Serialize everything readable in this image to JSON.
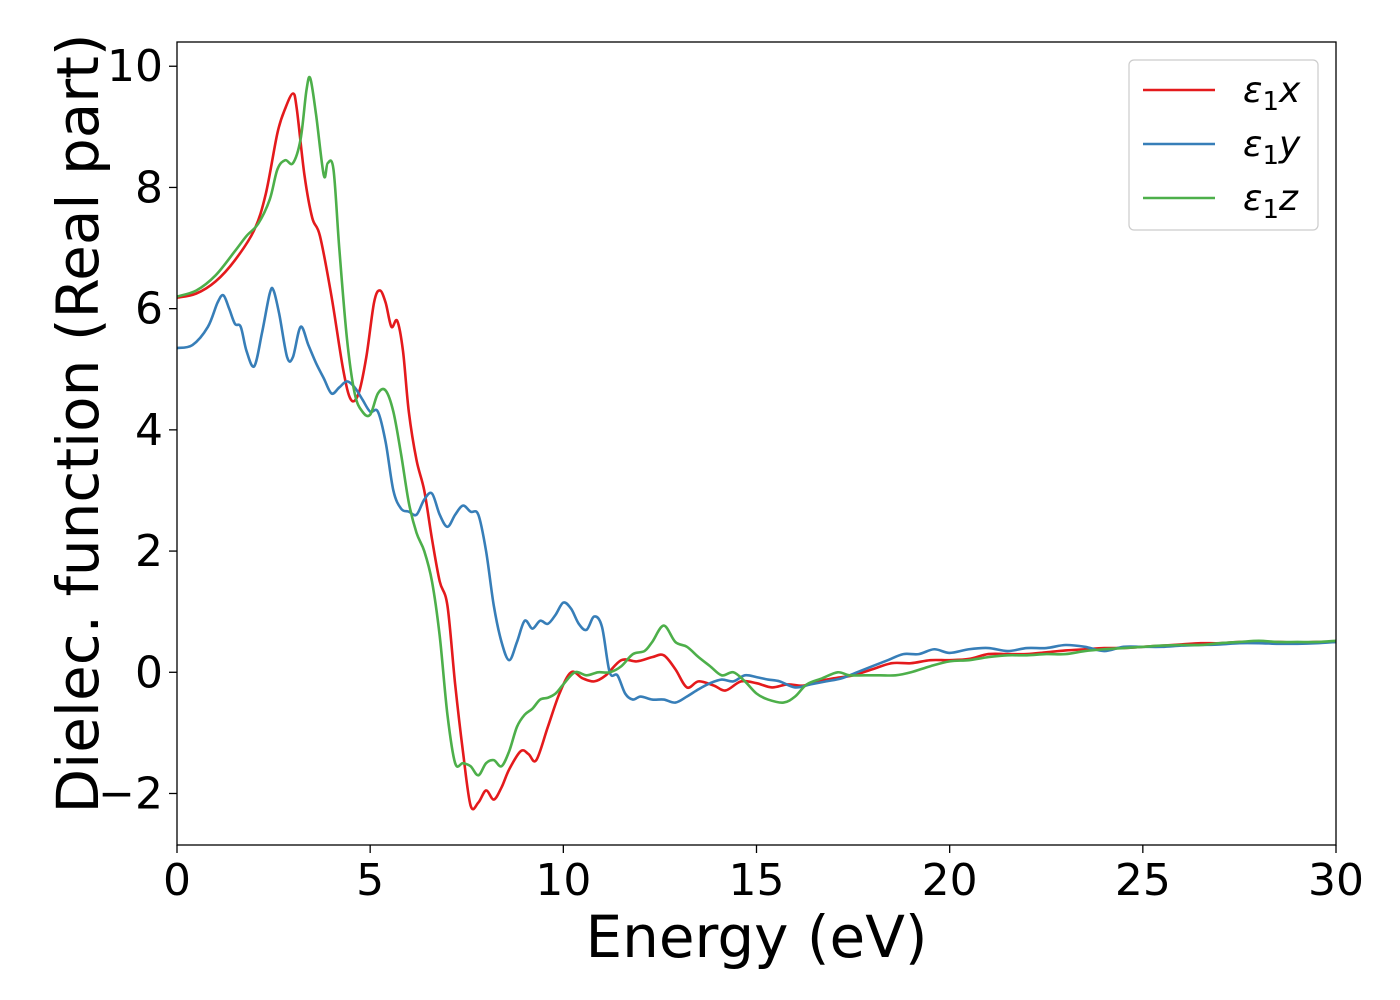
{
  "chart_data": {
    "type": "line",
    "xlabel": "Energy (eV)",
    "ylabel": "Dielec. function (Real part)",
    "xlim": [
      0,
      30
    ],
    "ylim": [
      -2.85,
      10.4
    ],
    "xticks": [
      0,
      5,
      10,
      15,
      20,
      25,
      30
    ],
    "xtick_labels": [
      "0",
      "5",
      "10",
      "15",
      "20",
      "25",
      "30"
    ],
    "yticks": [
      -2,
      0,
      2,
      4,
      6,
      8,
      10
    ],
    "ytick_labels": [
      "−2",
      "0",
      "2",
      "4",
      "6",
      "8",
      "10"
    ],
    "grid": false,
    "legend_position": "top-right",
    "series": [
      {
        "name": "ε₁x",
        "legend_main": "ε",
        "legend_sub": "1",
        "legend_tail": "x",
        "color": "#e41a1c",
        "points": [
          [
            0,
            6.18
          ],
          [
            0.5,
            6.25
          ],
          [
            1,
            6.45
          ],
          [
            1.5,
            6.8
          ],
          [
            2,
            7.3
          ],
          [
            2.3,
            7.9
          ],
          [
            2.6,
            8.9
          ],
          [
            2.8,
            9.3
          ],
          [
            3.0,
            9.55
          ],
          [
            3.1,
            9.3
          ],
          [
            3.3,
            8.2
          ],
          [
            3.5,
            7.5
          ],
          [
            3.7,
            7.2
          ],
          [
            4.0,
            6.2
          ],
          [
            4.3,
            5.0
          ],
          [
            4.5,
            4.5
          ],
          [
            4.7,
            4.6
          ],
          [
            4.9,
            5.2
          ],
          [
            5.1,
            6.1
          ],
          [
            5.25,
            6.3
          ],
          [
            5.4,
            6.1
          ],
          [
            5.55,
            5.7
          ],
          [
            5.7,
            5.8
          ],
          [
            5.85,
            5.3
          ],
          [
            6.0,
            4.3
          ],
          [
            6.2,
            3.5
          ],
          [
            6.4,
            3.0
          ],
          [
            6.6,
            2.2
          ],
          [
            6.8,
            1.5
          ],
          [
            7.0,
            1.1
          ],
          [
            7.2,
            -0.2
          ],
          [
            7.4,
            -1.3
          ],
          [
            7.6,
            -2.2
          ],
          [
            7.8,
            -2.15
          ],
          [
            8.0,
            -1.95
          ],
          [
            8.2,
            -2.1
          ],
          [
            8.4,
            -1.9
          ],
          [
            8.6,
            -1.6
          ],
          [
            8.9,
            -1.3
          ],
          [
            9.1,
            -1.35
          ],
          [
            9.3,
            -1.45
          ],
          [
            9.6,
            -0.9
          ],
          [
            9.9,
            -0.35
          ],
          [
            10.2,
            0.0
          ],
          [
            10.5,
            -0.1
          ],
          [
            10.8,
            -0.15
          ],
          [
            11.1,
            -0.05
          ],
          [
            11.5,
            0.2
          ],
          [
            11.9,
            0.18
          ],
          [
            12.3,
            0.25
          ],
          [
            12.6,
            0.28
          ],
          [
            12.9,
            0.05
          ],
          [
            13.2,
            -0.25
          ],
          [
            13.5,
            -0.15
          ],
          [
            13.9,
            -0.22
          ],
          [
            14.2,
            -0.3
          ],
          [
            14.6,
            -0.15
          ],
          [
            15.0,
            -0.18
          ],
          [
            15.4,
            -0.25
          ],
          [
            15.8,
            -0.2
          ],
          [
            16.2,
            -0.22
          ],
          [
            16.6,
            -0.15
          ],
          [
            17.0,
            -0.1
          ],
          [
            17.5,
            -0.05
          ],
          [
            18.0,
            0.05
          ],
          [
            18.5,
            0.15
          ],
          [
            19.0,
            0.15
          ],
          [
            19.5,
            0.2
          ],
          [
            20.0,
            0.2
          ],
          [
            20.5,
            0.22
          ],
          [
            21.0,
            0.3
          ],
          [
            21.5,
            0.3
          ],
          [
            22.0,
            0.3
          ],
          [
            22.5,
            0.33
          ],
          [
            23.0,
            0.36
          ],
          [
            23.5,
            0.38
          ],
          [
            24.0,
            0.4
          ],
          [
            24.5,
            0.4
          ],
          [
            25.0,
            0.42
          ],
          [
            25.5,
            0.44
          ],
          [
            26.0,
            0.46
          ],
          [
            26.5,
            0.48
          ],
          [
            27.0,
            0.48
          ],
          [
            27.5,
            0.5
          ],
          [
            28.0,
            0.5
          ],
          [
            28.5,
            0.5
          ],
          [
            29.0,
            0.49
          ],
          [
            29.5,
            0.5
          ],
          [
            30.0,
            0.5
          ]
        ]
      },
      {
        "name": "ε₁y",
        "legend_main": "ε",
        "legend_sub": "1",
        "legend_tail": "y",
        "color": "#377eb8",
        "points": [
          [
            0,
            5.35
          ],
          [
            0.4,
            5.4
          ],
          [
            0.8,
            5.7
          ],
          [
            1.05,
            6.1
          ],
          [
            1.2,
            6.22
          ],
          [
            1.35,
            6.0
          ],
          [
            1.5,
            5.75
          ],
          [
            1.65,
            5.7
          ],
          [
            1.8,
            5.3
          ],
          [
            2.0,
            5.05
          ],
          [
            2.2,
            5.6
          ],
          [
            2.4,
            6.25
          ],
          [
            2.5,
            6.3
          ],
          [
            2.65,
            5.9
          ],
          [
            2.85,
            5.2
          ],
          [
            3.0,
            5.2
          ],
          [
            3.2,
            5.7
          ],
          [
            3.4,
            5.4
          ],
          [
            3.6,
            5.1
          ],
          [
            3.8,
            4.85
          ],
          [
            4.0,
            4.6
          ],
          [
            4.2,
            4.7
          ],
          [
            4.4,
            4.8
          ],
          [
            4.6,
            4.7
          ],
          [
            4.8,
            4.5
          ],
          [
            5.0,
            4.3
          ],
          [
            5.2,
            4.3
          ],
          [
            5.4,
            3.8
          ],
          [
            5.6,
            3.0
          ],
          [
            5.8,
            2.7
          ],
          [
            6.0,
            2.65
          ],
          [
            6.2,
            2.6
          ],
          [
            6.4,
            2.85
          ],
          [
            6.6,
            2.95
          ],
          [
            6.8,
            2.6
          ],
          [
            7.0,
            2.4
          ],
          [
            7.2,
            2.6
          ],
          [
            7.4,
            2.75
          ],
          [
            7.6,
            2.65
          ],
          [
            7.8,
            2.6
          ],
          [
            8.0,
            2.0
          ],
          [
            8.2,
            1.1
          ],
          [
            8.4,
            0.5
          ],
          [
            8.6,
            0.2
          ],
          [
            8.8,
            0.5
          ],
          [
            9.0,
            0.85
          ],
          [
            9.2,
            0.72
          ],
          [
            9.4,
            0.85
          ],
          [
            9.6,
            0.8
          ],
          [
            9.8,
            0.95
          ],
          [
            10.0,
            1.15
          ],
          [
            10.2,
            1.05
          ],
          [
            10.4,
            0.8
          ],
          [
            10.6,
            0.7
          ],
          [
            10.8,
            0.92
          ],
          [
            11.0,
            0.75
          ],
          [
            11.2,
            0.0
          ],
          [
            11.4,
            -0.05
          ],
          [
            11.6,
            -0.35
          ],
          [
            11.8,
            -0.45
          ],
          [
            12.0,
            -0.4
          ],
          [
            12.3,
            -0.45
          ],
          [
            12.6,
            -0.45
          ],
          [
            12.9,
            -0.5
          ],
          [
            13.2,
            -0.4
          ],
          [
            13.5,
            -0.28
          ],
          [
            13.8,
            -0.18
          ],
          [
            14.1,
            -0.12
          ],
          [
            14.4,
            -0.15
          ],
          [
            14.7,
            -0.05
          ],
          [
            15.0,
            -0.08
          ],
          [
            15.3,
            -0.12
          ],
          [
            15.6,
            -0.15
          ],
          [
            16.0,
            -0.25
          ],
          [
            16.4,
            -0.2
          ],
          [
            16.8,
            -0.15
          ],
          [
            17.2,
            -0.1
          ],
          [
            17.6,
            0.0
          ],
          [
            18.0,
            0.1
          ],
          [
            18.4,
            0.2
          ],
          [
            18.8,
            0.3
          ],
          [
            19.2,
            0.3
          ],
          [
            19.6,
            0.38
          ],
          [
            20.0,
            0.32
          ],
          [
            20.5,
            0.38
          ],
          [
            21.0,
            0.4
          ],
          [
            21.5,
            0.35
          ],
          [
            22.0,
            0.4
          ],
          [
            22.5,
            0.4
          ],
          [
            23.0,
            0.45
          ],
          [
            23.5,
            0.42
          ],
          [
            24.0,
            0.35
          ],
          [
            24.5,
            0.42
          ],
          [
            25.0,
            0.42
          ],
          [
            25.5,
            0.42
          ],
          [
            26.0,
            0.44
          ],
          [
            26.5,
            0.45
          ],
          [
            27.0,
            0.46
          ],
          [
            27.5,
            0.48
          ],
          [
            28.0,
            0.48
          ],
          [
            28.5,
            0.47
          ],
          [
            29.0,
            0.47
          ],
          [
            29.5,
            0.48
          ],
          [
            30.0,
            0.5
          ]
        ]
      },
      {
        "name": "ε₁z",
        "legend_main": "ε",
        "legend_sub": "1",
        "legend_tail": "z",
        "color": "#4daf4a",
        "points": [
          [
            0,
            6.2
          ],
          [
            0.5,
            6.3
          ],
          [
            1,
            6.55
          ],
          [
            1.5,
            6.95
          ],
          [
            1.8,
            7.2
          ],
          [
            2.1,
            7.4
          ],
          [
            2.4,
            7.8
          ],
          [
            2.6,
            8.3
          ],
          [
            2.8,
            8.45
          ],
          [
            3.0,
            8.4
          ],
          [
            3.2,
            8.8
          ],
          [
            3.35,
            9.6
          ],
          [
            3.45,
            9.8
          ],
          [
            3.6,
            9.2
          ],
          [
            3.8,
            8.2
          ],
          [
            3.9,
            8.4
          ],
          [
            4.05,
            8.3
          ],
          [
            4.2,
            7.0
          ],
          [
            4.4,
            5.5
          ],
          [
            4.6,
            4.6
          ],
          [
            4.8,
            4.3
          ],
          [
            5.0,
            4.25
          ],
          [
            5.2,
            4.6
          ],
          [
            5.4,
            4.65
          ],
          [
            5.6,
            4.3
          ],
          [
            5.8,
            3.6
          ],
          [
            6.0,
            2.8
          ],
          [
            6.2,
            2.3
          ],
          [
            6.4,
            2.0
          ],
          [
            6.6,
            1.5
          ],
          [
            6.8,
            0.6
          ],
          [
            7.0,
            -0.7
          ],
          [
            7.2,
            -1.5
          ],
          [
            7.4,
            -1.5
          ],
          [
            7.6,
            -1.55
          ],
          [
            7.8,
            -1.7
          ],
          [
            8.0,
            -1.5
          ],
          [
            8.2,
            -1.45
          ],
          [
            8.4,
            -1.55
          ],
          [
            8.6,
            -1.3
          ],
          [
            8.8,
            -0.9
          ],
          [
            9.0,
            -0.7
          ],
          [
            9.2,
            -0.6
          ],
          [
            9.4,
            -0.45
          ],
          [
            9.6,
            -0.42
          ],
          [
            9.8,
            -0.35
          ],
          [
            10.0,
            -0.2
          ],
          [
            10.3,
            0.0
          ],
          [
            10.6,
            -0.05
          ],
          [
            10.9,
            0.0
          ],
          [
            11.2,
            0.0
          ],
          [
            11.5,
            0.1
          ],
          [
            11.8,
            0.3
          ],
          [
            12.1,
            0.35
          ],
          [
            12.3,
            0.5
          ],
          [
            12.6,
            0.77
          ],
          [
            12.9,
            0.5
          ],
          [
            13.2,
            0.42
          ],
          [
            13.5,
            0.25
          ],
          [
            13.8,
            0.1
          ],
          [
            14.1,
            -0.05
          ],
          [
            14.4,
            0.0
          ],
          [
            14.7,
            -0.15
          ],
          [
            15.0,
            -0.35
          ],
          [
            15.3,
            -0.45
          ],
          [
            15.7,
            -0.5
          ],
          [
            16.0,
            -0.4
          ],
          [
            16.3,
            -0.2
          ],
          [
            16.7,
            -0.1
          ],
          [
            17.1,
            0.0
          ],
          [
            17.4,
            -0.05
          ],
          [
            17.8,
            -0.05
          ],
          [
            18.2,
            -0.05
          ],
          [
            18.6,
            -0.05
          ],
          [
            19.0,
            0.0
          ],
          [
            19.5,
            0.1
          ],
          [
            20.0,
            0.18
          ],
          [
            20.5,
            0.2
          ],
          [
            21.0,
            0.25
          ],
          [
            21.5,
            0.28
          ],
          [
            22.0,
            0.28
          ],
          [
            22.5,
            0.3
          ],
          [
            23.0,
            0.3
          ],
          [
            23.5,
            0.35
          ],
          [
            24.0,
            0.38
          ],
          [
            24.5,
            0.4
          ],
          [
            25.0,
            0.42
          ],
          [
            25.5,
            0.44
          ],
          [
            26.0,
            0.45
          ],
          [
            26.5,
            0.45
          ],
          [
            27.0,
            0.48
          ],
          [
            27.5,
            0.5
          ],
          [
            28.0,
            0.52
          ],
          [
            28.5,
            0.5
          ],
          [
            29.0,
            0.5
          ],
          [
            29.5,
            0.5
          ],
          [
            30.0,
            0.52
          ]
        ]
      }
    ]
  }
}
